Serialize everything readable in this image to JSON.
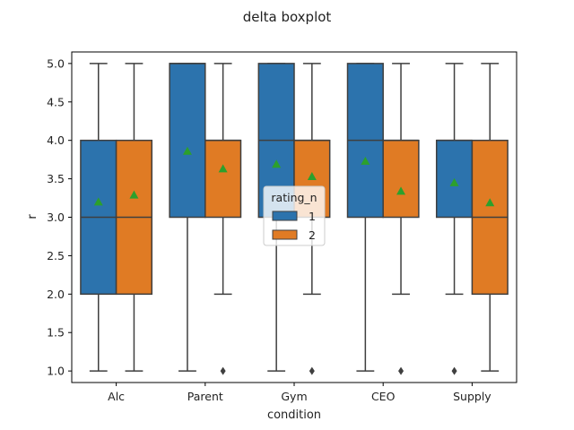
{
  "chart_data": {
    "type": "boxplot",
    "title": "delta boxplot",
    "xlabel": "condition",
    "ylabel": "r",
    "categories": [
      "Alc",
      "Parent",
      "Gym",
      "CEO",
      "Supply"
    ],
    "ylim": [
      0.85,
      5.15
    ],
    "yticks": [
      1.0,
      1.5,
      2.0,
      2.5,
      3.0,
      3.5,
      4.0,
      4.5,
      5.0
    ],
    "ytick_labels": [
      "1.0",
      "1.5",
      "2.0",
      "2.5",
      "3.0",
      "3.5",
      "4.0",
      "4.5",
      "5.0"
    ],
    "show_means": true,
    "grid": false,
    "legend": {
      "title": "rating_n",
      "placement": "center"
    },
    "series": [
      {
        "name": "1",
        "color": "#2c73ad",
        "boxes": [
          {
            "q1": 2.0,
            "median": 3.0,
            "q3": 4.0,
            "whislo": 1.0,
            "whishi": 5.0,
            "mean": 3.2,
            "fliers": []
          },
          {
            "q1": 3.0,
            "median": 5.0,
            "q3": 5.0,
            "whislo": 1.0,
            "whishi": 5.0,
            "mean": 3.86,
            "fliers": []
          },
          {
            "q1": 3.0,
            "median": 4.0,
            "q3": 5.0,
            "whislo": 1.0,
            "whishi": 5.0,
            "mean": 3.69,
            "fliers": []
          },
          {
            "q1": 3.0,
            "median": 4.0,
            "q3": 5.0,
            "whislo": 1.0,
            "whishi": 5.0,
            "mean": 3.73,
            "fliers": []
          },
          {
            "q1": 3.0,
            "median": 4.0,
            "q3": 4.0,
            "whislo": 2.0,
            "whishi": 5.0,
            "mean": 3.45,
            "fliers": [
              1.0
            ]
          }
        ]
      },
      {
        "name": "2",
        "color": "#e07b24",
        "boxes": [
          {
            "q1": 2.0,
            "median": 3.0,
            "q3": 4.0,
            "whislo": 1.0,
            "whishi": 5.0,
            "mean": 3.29,
            "fliers": []
          },
          {
            "q1": 3.0,
            "median": 4.0,
            "q3": 4.0,
            "whislo": 2.0,
            "whishi": 5.0,
            "mean": 3.63,
            "fliers": [
              1.0
            ]
          },
          {
            "q1": 3.0,
            "median": 4.0,
            "q3": 4.0,
            "whislo": 2.0,
            "whishi": 5.0,
            "mean": 3.53,
            "fliers": [
              1.0
            ]
          },
          {
            "q1": 3.0,
            "median": 4.0,
            "q3": 4.0,
            "whislo": 2.0,
            "whishi": 5.0,
            "mean": 3.34,
            "fliers": [
              1.0
            ]
          },
          {
            "q1": 2.0,
            "median": 3.0,
            "q3": 4.0,
            "whislo": 1.0,
            "whishi": 5.0,
            "mean": 3.19,
            "fliers": []
          }
        ]
      }
    ],
    "mean_marker_color": "#2ca02c",
    "line_color": "#3f3f3f"
  }
}
